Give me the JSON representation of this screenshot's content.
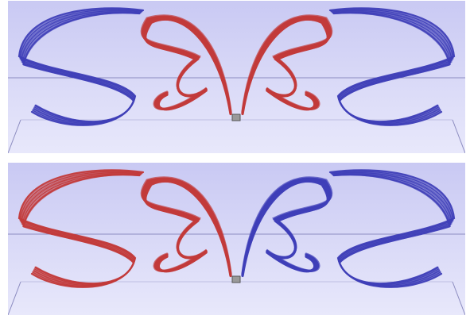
{
  "figure": {
    "panels": [
      {
        "id": "top",
        "left_half_color": "#3f3fb8",
        "right_half_color": "#c23a3a",
        "inner_left_color": "#c23a3a",
        "inner_right_color": "#c23a3a",
        "outer_left_color": "#3f3fb8",
        "outer_right_color": "#3f3fb8"
      },
      {
        "id": "bottom",
        "outer_left_color": "#c23a3a",
        "inner_left_color": "#c23a3a",
        "inner_right_color": "#3f3fb8",
        "outer_right_color": "#3f3fb8"
      }
    ],
    "background_color": "#d6d6f6",
    "grid_color": "#8c8cc0"
  }
}
